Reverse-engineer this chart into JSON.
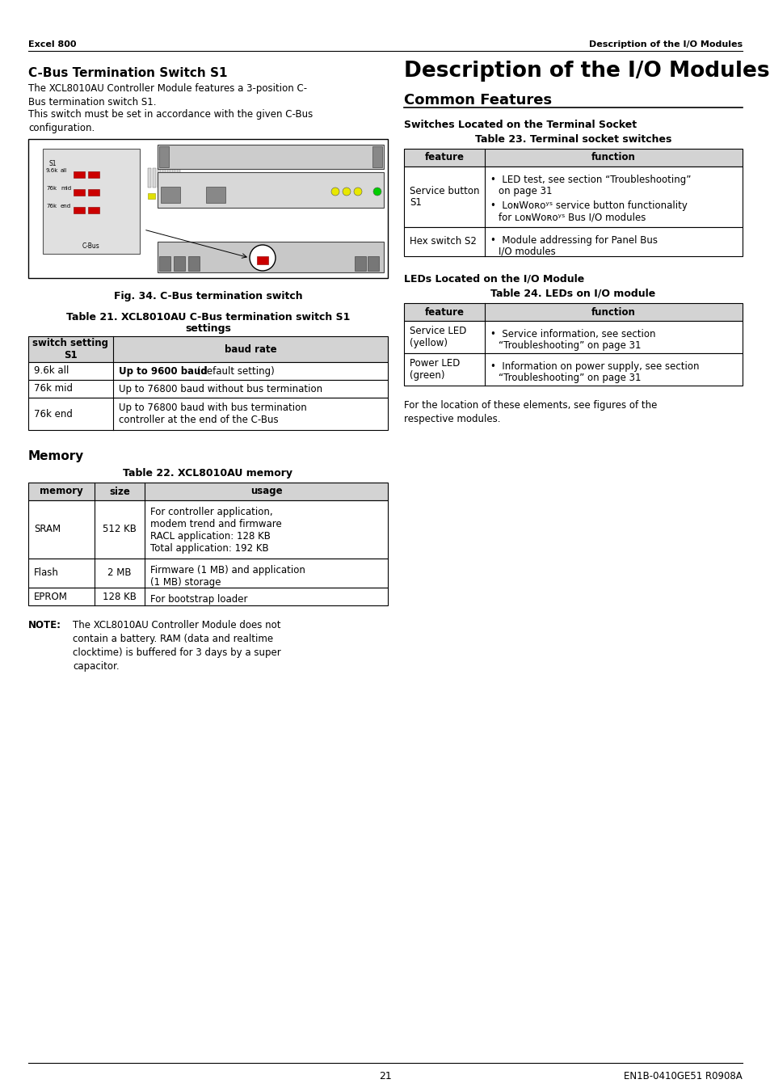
{
  "page_header_left": "Excel 800",
  "page_header_right": "Description of the I/O Modules",
  "right_title_large": "Description of the I/O Modules",
  "right_title_sub": "Common Features",
  "left_section1_title": "C-Bus Termination Switch S1",
  "left_section1_para1": "The XCL8010AU Controller Module features a 3-position C-\nBus termination switch S1.",
  "left_section1_para2": "This switch must be set in accordance with the given C-Bus\nconfiguration.",
  "fig_caption": "Fig. 34. C-Bus termination switch",
  "table21_title1": "Table 21. XCL8010AU C-Bus termination switch S1",
  "table21_title2": "settings",
  "table21_headers": [
    "switch setting\nS1",
    "baud rate"
  ],
  "table21_rows": [
    [
      "9.6k all",
      "Up to 9600 baud",
      " (default setting)"
    ],
    [
      "76k mid",
      "Up to 76800 baud without bus termination",
      ""
    ],
    [
      "76k end",
      "Up to 76800 baud with bus termination\ncontroller at the end of the C-Bus",
      ""
    ]
  ],
  "memory_section_title": "Memory",
  "table22_title": "Table 22. XCL8010AU memory",
  "table22_headers": [
    "memory",
    "size",
    "usage"
  ],
  "table22_rows": [
    [
      "SRAM",
      "512 KB",
      "For controller application,\nmodem trend and firmware\nRACL application: 128 KB\nTotal application: 192 KB"
    ],
    [
      "Flash",
      "2 MB",
      "Firmware (1 MB) and application\n(1 MB) storage"
    ],
    [
      "EPROM",
      "128 KB",
      "For bootstrap loader"
    ]
  ],
  "note_label": "NOTE:",
  "note_text": "The XCL8010AU Controller Module does not\ncontain a battery. RAM (data and realtime\nclocktime) is buffered for 3 days by a super\ncapacitor.",
  "right_switches_title": "Switches Located on the Terminal Socket",
  "table23_title": "Table 23. Terminal socket switches",
  "table23_headers": [
    "feature",
    "function"
  ],
  "table23_row0_col0": "Service button\nS1",
  "table23_row0_b1": "•  LED test, see section “Troubleshooting”",
  "table23_row0_b1b": "     on page 31",
  "table23_row0_b2": "•  LᴏɴWᴏʀᴏʸˢ service button functionality",
  "table23_row0_b2b": "     for LᴏɴWᴏʀᴏʸˢ Bus I/O modules",
  "table23_row1_col0": "Hex switch S2",
  "table23_row1_b1": "•  Module addressing for Panel Bus",
  "table23_row1_b1b": "     I/O modules",
  "right_leds_title": "LEDs Located on the I/O Module",
  "table24_title": "Table 24. LEDs on I/O module",
  "table24_headers": [
    "feature",
    "function"
  ],
  "table24_row0_col0": "Service LED\n(yellow)",
  "table24_row0_b1": "•  Service information, see section",
  "table24_row0_b1b": "     “Troubleshooting” on page 31",
  "table24_row1_col0": "Power LED\n(green)",
  "table24_row1_b1": "•  Information on power supply, see section",
  "table24_row1_b1b": "     “Troubleshooting” on page 31",
  "right_footer_text": "For the location of these elements, see figures of the\nrespective modules.",
  "page_number": "21",
  "page_footer_right": "EN1B-0410GE51 R0908A",
  "table_header_bg": "#d3d3d3",
  "bg_color": "#ffffff"
}
